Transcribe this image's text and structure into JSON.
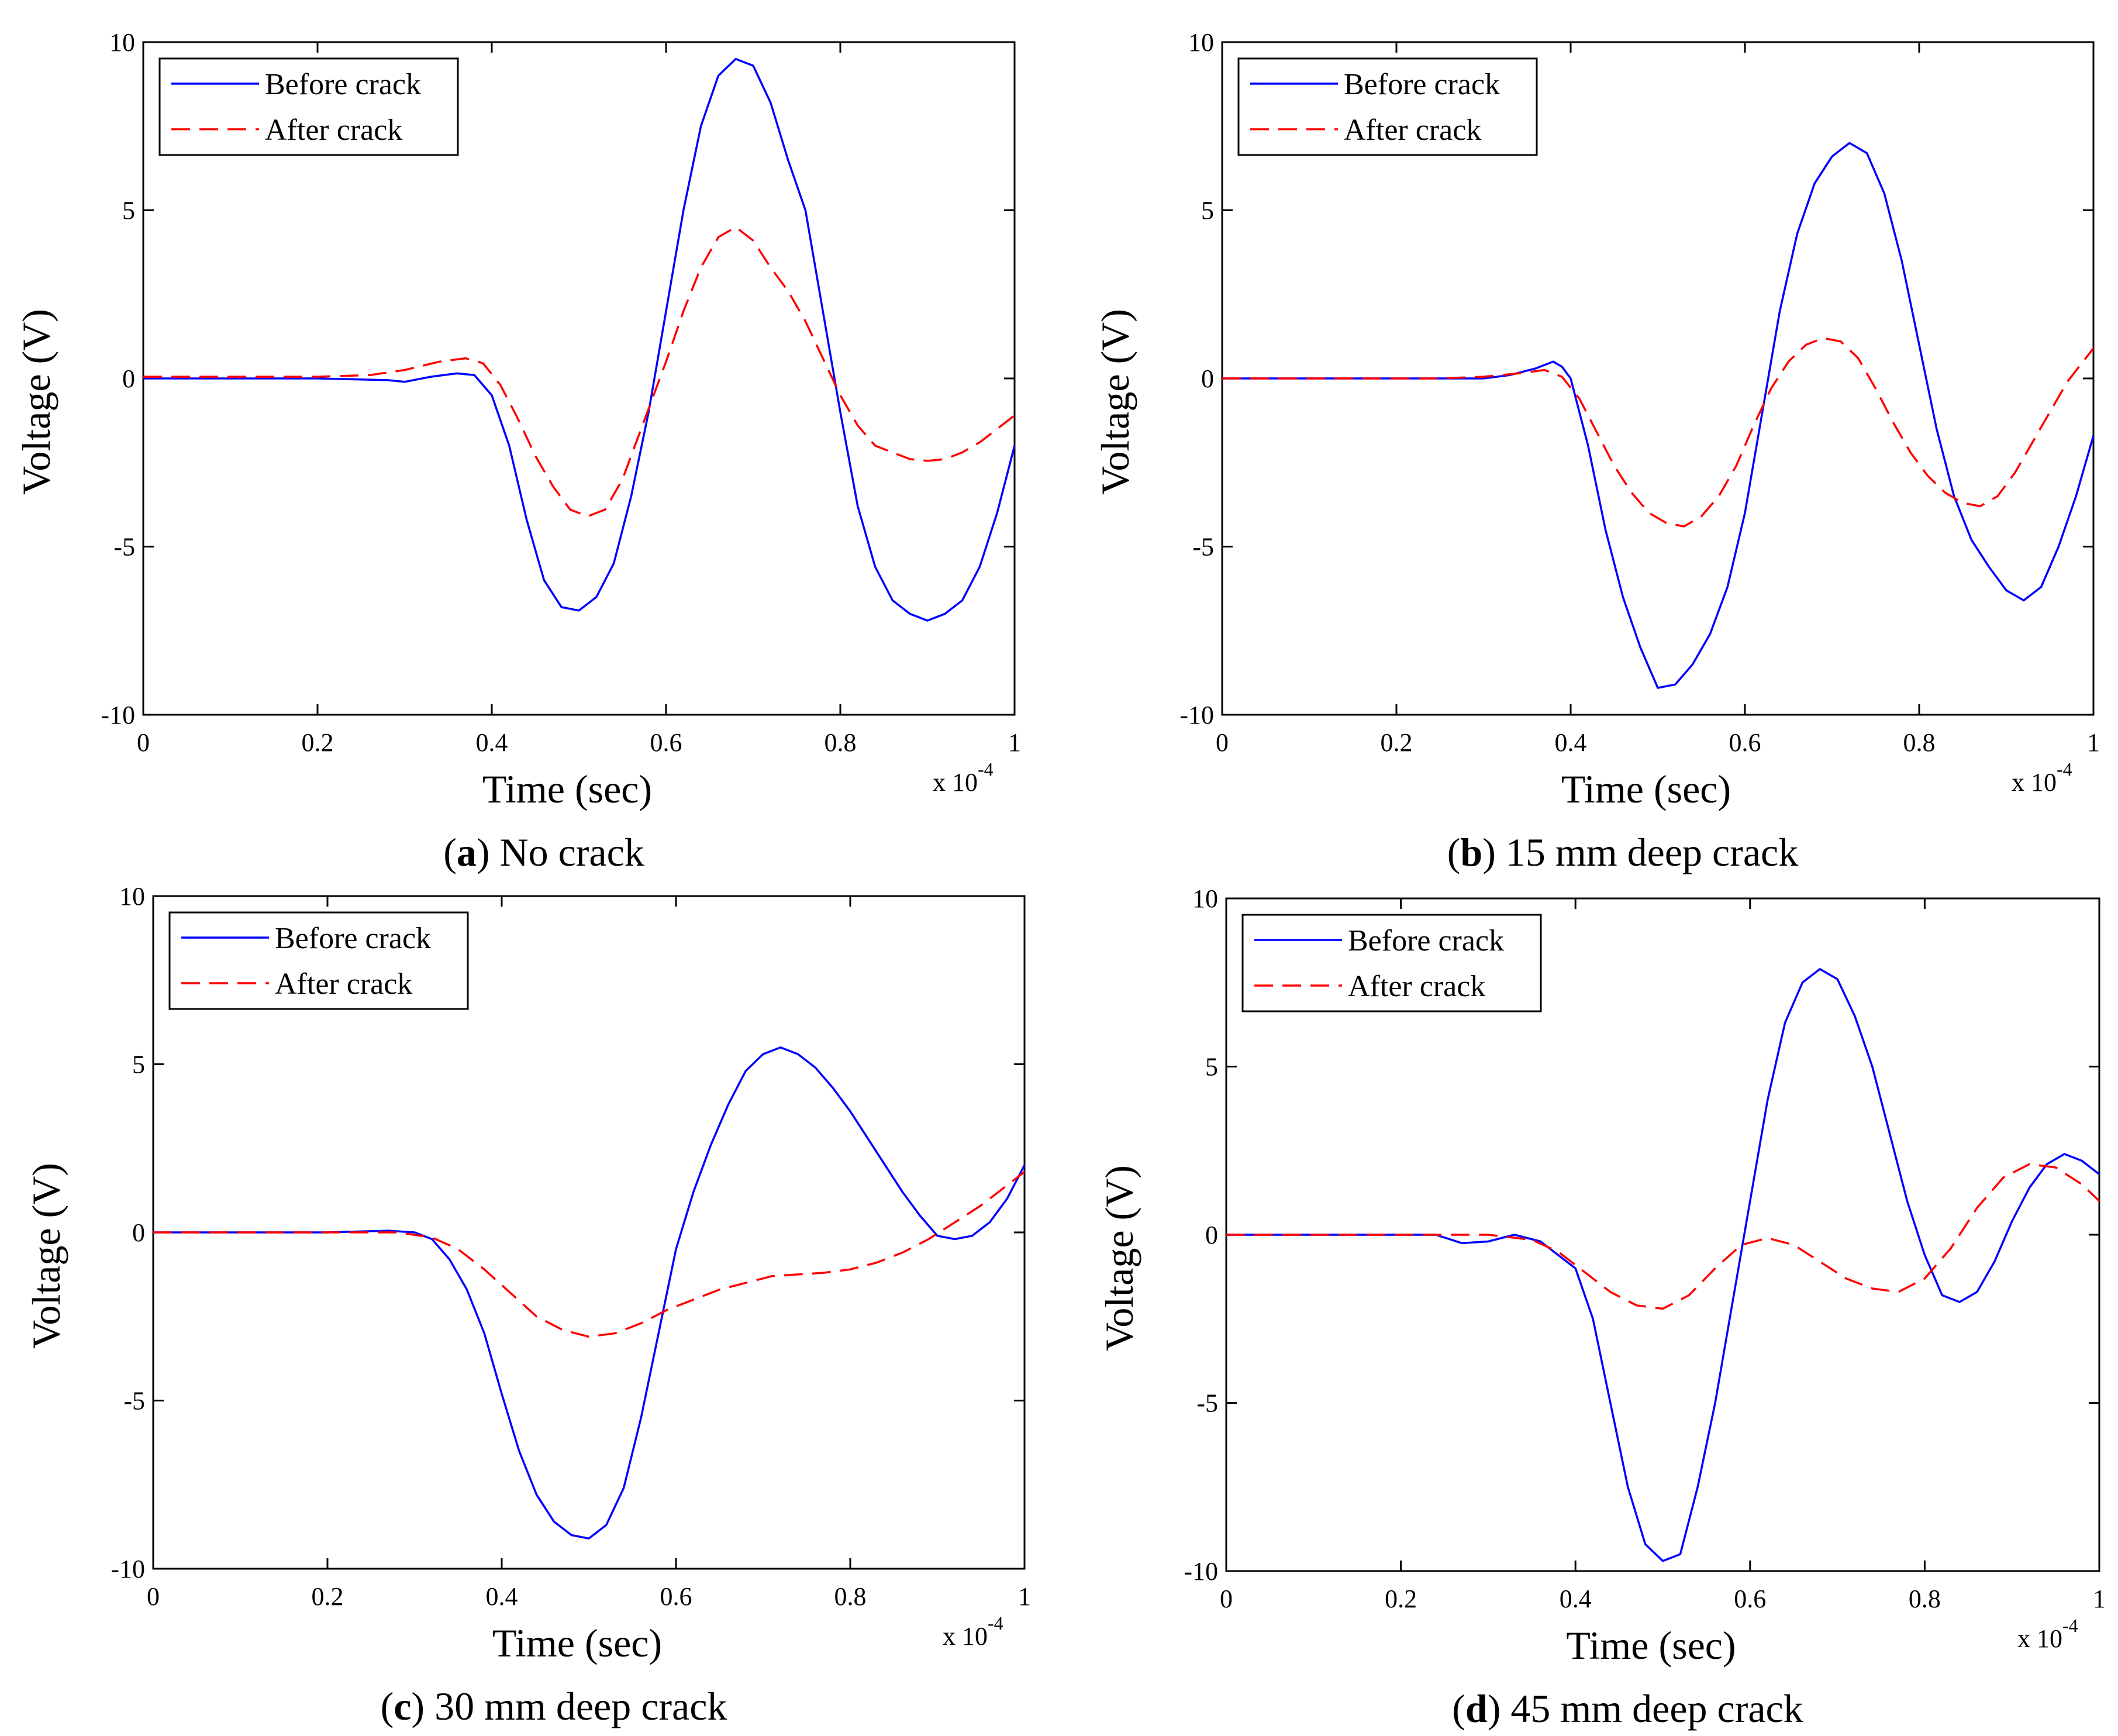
{
  "chart_data": [
    {
      "type": "line",
      "panel": "a",
      "caption_letter": "a",
      "caption_text": "No crack",
      "xlabel": "Time (sec)",
      "ylabel": "Voltage (V)",
      "x_multiplier_base": "x 10",
      "x_multiplier_exp": "-4",
      "xlim": [
        0,
        1
      ],
      "ylim": [
        -10,
        10
      ],
      "x_ticks": [
        0,
        0.2,
        0.4,
        0.6,
        0.8,
        1
      ],
      "x_tick_labels": [
        "0",
        "0.2",
        "0.4",
        "0.6",
        "0.8",
        "1"
      ],
      "y_ticks": [
        -10,
        -5,
        0,
        5,
        10
      ],
      "y_tick_labels": [
        "-10",
        "-5",
        "0",
        "5",
        "10"
      ],
      "legend": [
        "Before crack",
        "After crack"
      ],
      "series": [
        {
          "name": "Before crack",
          "color": "#0000ff",
          "dash": "solid",
          "x": [
            0,
            0.1,
            0.2,
            0.28,
            0.3,
            0.33,
            0.36,
            0.38,
            0.4,
            0.42,
            0.44,
            0.46,
            0.48,
            0.5,
            0.52,
            0.54,
            0.56,
            0.58,
            0.6,
            0.62,
            0.64,
            0.66,
            0.68,
            0.7,
            0.72,
            0.74,
            0.76,
            0.78,
            0.8,
            0.82,
            0.84,
            0.86,
            0.88,
            0.9,
            0.92,
            0.94,
            0.96,
            0.98,
            1.0
          ],
          "y": [
            0,
            0,
            0,
            -0.05,
            -0.1,
            0.05,
            0.15,
            0.1,
            -0.5,
            -2.0,
            -4.2,
            -6.0,
            -6.8,
            -6.9,
            -6.5,
            -5.5,
            -3.5,
            -1.0,
            2.0,
            5.0,
            7.5,
            9.0,
            9.5,
            9.3,
            8.2,
            6.5,
            5.0,
            2.0,
            -1.0,
            -3.8,
            -5.6,
            -6.6,
            -7.0,
            -7.2,
            -7.0,
            -6.6,
            -5.6,
            -4.0,
            -2.0
          ]
        },
        {
          "name": "After crack",
          "color": "#ff0000",
          "dash": "dashed",
          "x": [
            0,
            0.1,
            0.2,
            0.26,
            0.3,
            0.34,
            0.37,
            0.39,
            0.41,
            0.43,
            0.45,
            0.47,
            0.49,
            0.51,
            0.53,
            0.55,
            0.57,
            0.6,
            0.62,
            0.64,
            0.66,
            0.68,
            0.7,
            0.72,
            0.74,
            0.76,
            0.78,
            0.8,
            0.82,
            0.84,
            0.86,
            0.88,
            0.9,
            0.92,
            0.94,
            0.96,
            0.98,
            1.0
          ],
          "y": [
            0.05,
            0.05,
            0.05,
            0.1,
            0.25,
            0.5,
            0.6,
            0.45,
            -0.2,
            -1.2,
            -2.3,
            -3.2,
            -3.9,
            -4.1,
            -3.9,
            -3.0,
            -1.6,
            0.5,
            2.0,
            3.3,
            4.2,
            4.5,
            4.1,
            3.3,
            2.6,
            1.7,
            0.6,
            -0.5,
            -1.4,
            -2.0,
            -2.2,
            -2.4,
            -2.45,
            -2.4,
            -2.2,
            -1.9,
            -1.5,
            -1.1
          ]
        }
      ]
    },
    {
      "type": "line",
      "panel": "b",
      "caption_letter": "b",
      "caption_text": "15 mm deep crack",
      "xlabel": "Time (sec)",
      "ylabel": "Voltage (V)",
      "x_multiplier_base": "x 10",
      "x_multiplier_exp": "-4",
      "xlim": [
        0,
        1
      ],
      "ylim": [
        -10,
        10
      ],
      "x_ticks": [
        0,
        0.2,
        0.4,
        0.6,
        0.8,
        1
      ],
      "x_tick_labels": [
        "0",
        "0.2",
        "0.4",
        "0.6",
        "0.8",
        "1"
      ],
      "y_ticks": [
        -10,
        -5,
        0,
        5,
        10
      ],
      "y_tick_labels": [
        "-10",
        "-5",
        "0",
        "5",
        "10"
      ],
      "legend": [
        "Before crack",
        "After crack"
      ],
      "series": [
        {
          "name": "Before crack",
          "color": "#0000ff",
          "dash": "solid",
          "x": [
            0,
            0.15,
            0.25,
            0.3,
            0.33,
            0.36,
            0.38,
            0.39,
            0.4,
            0.42,
            0.44,
            0.46,
            0.48,
            0.5,
            0.52,
            0.54,
            0.56,
            0.58,
            0.6,
            0.62,
            0.64,
            0.66,
            0.68,
            0.7,
            0.72,
            0.74,
            0.76,
            0.78,
            0.8,
            0.82,
            0.84,
            0.86,
            0.88,
            0.9,
            0.92,
            0.94,
            0.96,
            0.98,
            1.0
          ],
          "y": [
            0,
            0,
            0,
            0,
            0.1,
            0.3,
            0.5,
            0.35,
            0.0,
            -2.0,
            -4.5,
            -6.5,
            -8.0,
            -9.2,
            -9.1,
            -8.5,
            -7.6,
            -6.2,
            -4.0,
            -1.0,
            2.0,
            4.3,
            5.8,
            6.6,
            7.0,
            6.7,
            5.5,
            3.5,
            1.0,
            -1.5,
            -3.5,
            -4.8,
            -5.6,
            -6.3,
            -6.6,
            -6.2,
            -5.0,
            -3.5,
            -1.7
          ]
        },
        {
          "name": "After crack",
          "color": "#ff0000",
          "dash": "dashed",
          "x": [
            0,
            0.15,
            0.25,
            0.3,
            0.34,
            0.37,
            0.39,
            0.41,
            0.43,
            0.45,
            0.47,
            0.49,
            0.51,
            0.53,
            0.55,
            0.57,
            0.59,
            0.61,
            0.63,
            0.65,
            0.67,
            0.69,
            0.71,
            0.73,
            0.75,
            0.77,
            0.79,
            0.81,
            0.83,
            0.85,
            0.87,
            0.89,
            0.91,
            0.93,
            0.95,
            0.97,
            1.0
          ],
          "y": [
            0,
            0,
            0,
            0.05,
            0.15,
            0.25,
            0.05,
            -0.6,
            -1.6,
            -2.6,
            -3.4,
            -4.0,
            -4.3,
            -4.4,
            -4.1,
            -3.5,
            -2.6,
            -1.4,
            -0.3,
            0.5,
            1.0,
            1.2,
            1.1,
            0.6,
            -0.3,
            -1.3,
            -2.2,
            -2.9,
            -3.4,
            -3.7,
            -3.8,
            -3.5,
            -2.8,
            -1.9,
            -1.0,
            -0.1,
            0.9
          ]
        }
      ]
    },
    {
      "type": "line",
      "panel": "c",
      "caption_letter": "c",
      "caption_text": "30 mm deep crack",
      "xlabel": "Time (sec)",
      "ylabel": "Voltage (V)",
      "x_multiplier_base": "x 10",
      "x_multiplier_exp": "-4",
      "xlim": [
        0,
        1
      ],
      "ylim": [
        -10,
        10
      ],
      "x_ticks": [
        0,
        0.2,
        0.4,
        0.6,
        0.8,
        1
      ],
      "x_tick_labels": [
        "0",
        "0.2",
        "0.4",
        "0.6",
        "0.8",
        "1"
      ],
      "y_ticks": [
        -10,
        -5,
        0,
        5,
        10
      ],
      "y_tick_labels": [
        "-10",
        "-5",
        "0",
        "5",
        "10"
      ],
      "legend": [
        "Before crack",
        "After crack"
      ],
      "series": [
        {
          "name": "Before crack",
          "color": "#0000ff",
          "dash": "solid",
          "x": [
            0,
            0.1,
            0.2,
            0.27,
            0.3,
            0.32,
            0.34,
            0.36,
            0.38,
            0.4,
            0.42,
            0.44,
            0.46,
            0.48,
            0.5,
            0.52,
            0.54,
            0.56,
            0.58,
            0.6,
            0.62,
            0.64,
            0.66,
            0.68,
            0.7,
            0.72,
            0.74,
            0.76,
            0.78,
            0.8,
            0.82,
            0.84,
            0.86,
            0.88,
            0.9,
            0.92,
            0.94,
            0.96,
            0.98,
            1.0
          ],
          "y": [
            0,
            0,
            0,
            0.05,
            0,
            -0.2,
            -0.8,
            -1.7,
            -3.0,
            -4.8,
            -6.5,
            -7.8,
            -8.6,
            -9.0,
            -9.1,
            -8.7,
            -7.6,
            -5.5,
            -3.0,
            -0.5,
            1.2,
            2.6,
            3.8,
            4.8,
            5.3,
            5.5,
            5.3,
            4.9,
            4.3,
            3.6,
            2.8,
            2.0,
            1.2,
            0.5,
            -0.1,
            -0.2,
            -0.1,
            0.3,
            1.0,
            2.0
          ]
        },
        {
          "name": "After crack",
          "color": "#ff0000",
          "dash": "dashed",
          "x": [
            0,
            0.1,
            0.2,
            0.28,
            0.32,
            0.35,
            0.38,
            0.41,
            0.44,
            0.47,
            0.5,
            0.53,
            0.56,
            0.59,
            0.62,
            0.65,
            0.68,
            0.71,
            0.74,
            0.77,
            0.8,
            0.83,
            0.86,
            0.89,
            0.92,
            0.95,
            0.98,
            1.0
          ],
          "y": [
            0,
            0,
            0,
            0,
            -0.15,
            -0.5,
            -1.1,
            -1.8,
            -2.5,
            -2.9,
            -3.1,
            -3.0,
            -2.7,
            -2.3,
            -2.0,
            -1.7,
            -1.5,
            -1.3,
            -1.25,
            -1.2,
            -1.1,
            -0.9,
            -0.6,
            -0.2,
            0.3,
            0.8,
            1.4,
            1.8
          ]
        }
      ]
    },
    {
      "type": "line",
      "panel": "d",
      "caption_letter": "d",
      "caption_text": "45 mm deep crack",
      "xlabel": "Time (sec)",
      "ylabel": "Voltage (V)",
      "x_multiplier_base": "x 10",
      "x_multiplier_exp": "-4",
      "xlim": [
        0,
        1
      ],
      "ylim": [
        -10,
        10
      ],
      "x_ticks": [
        0,
        0.2,
        0.4,
        0.6,
        0.8,
        1
      ],
      "x_tick_labels": [
        "0",
        "0.2",
        "0.4",
        "0.6",
        "0.8",
        "1"
      ],
      "y_ticks": [
        -10,
        -5,
        0,
        5,
        10
      ],
      "y_tick_labels": [
        "-10",
        "-5",
        "0",
        "5",
        "10"
      ],
      "legend": [
        "Before crack",
        "After crack"
      ],
      "series": [
        {
          "name": "Before crack",
          "color": "#0000ff",
          "dash": "solid",
          "x": [
            0,
            0.1,
            0.2,
            0.24,
            0.27,
            0.3,
            0.33,
            0.36,
            0.38,
            0.4,
            0.42,
            0.44,
            0.46,
            0.48,
            0.5,
            0.52,
            0.54,
            0.56,
            0.58,
            0.6,
            0.62,
            0.64,
            0.66,
            0.68,
            0.7,
            0.72,
            0.74,
            0.76,
            0.78,
            0.8,
            0.82,
            0.84,
            0.86,
            0.88,
            0.9,
            0.92,
            0.94,
            0.96,
            0.98,
            1.0
          ],
          "y": [
            0,
            0,
            0,
            0,
            -0.25,
            -0.2,
            0.0,
            -0.2,
            -0.6,
            -1.0,
            -2.5,
            -5.0,
            -7.5,
            -9.2,
            -9.7,
            -9.5,
            -7.5,
            -5.0,
            -2.0,
            1.0,
            4.0,
            6.3,
            7.5,
            7.9,
            7.6,
            6.5,
            5.0,
            3.0,
            1.0,
            -0.6,
            -1.8,
            -2.0,
            -1.7,
            -0.8,
            0.4,
            1.4,
            2.1,
            2.4,
            2.2,
            1.8
          ]
        },
        {
          "name": "After crack",
          "color": "#ff0000",
          "dash": "dashed",
          "x": [
            0,
            0.1,
            0.2,
            0.3,
            0.35,
            0.38,
            0.41,
            0.44,
            0.47,
            0.5,
            0.53,
            0.56,
            0.59,
            0.62,
            0.65,
            0.68,
            0.71,
            0.74,
            0.77,
            0.8,
            0.83,
            0.86,
            0.89,
            0.92,
            0.95,
            0.98,
            1.0
          ],
          "y": [
            0,
            0,
            0,
            0,
            -0.15,
            -0.5,
            -1.1,
            -1.7,
            -2.1,
            -2.2,
            -1.8,
            -1.0,
            -0.3,
            -0.1,
            -0.3,
            -0.8,
            -1.3,
            -1.6,
            -1.7,
            -1.3,
            -0.4,
            0.8,
            1.7,
            2.1,
            2.0,
            1.5,
            1.0
          ]
        }
      ]
    }
  ]
}
